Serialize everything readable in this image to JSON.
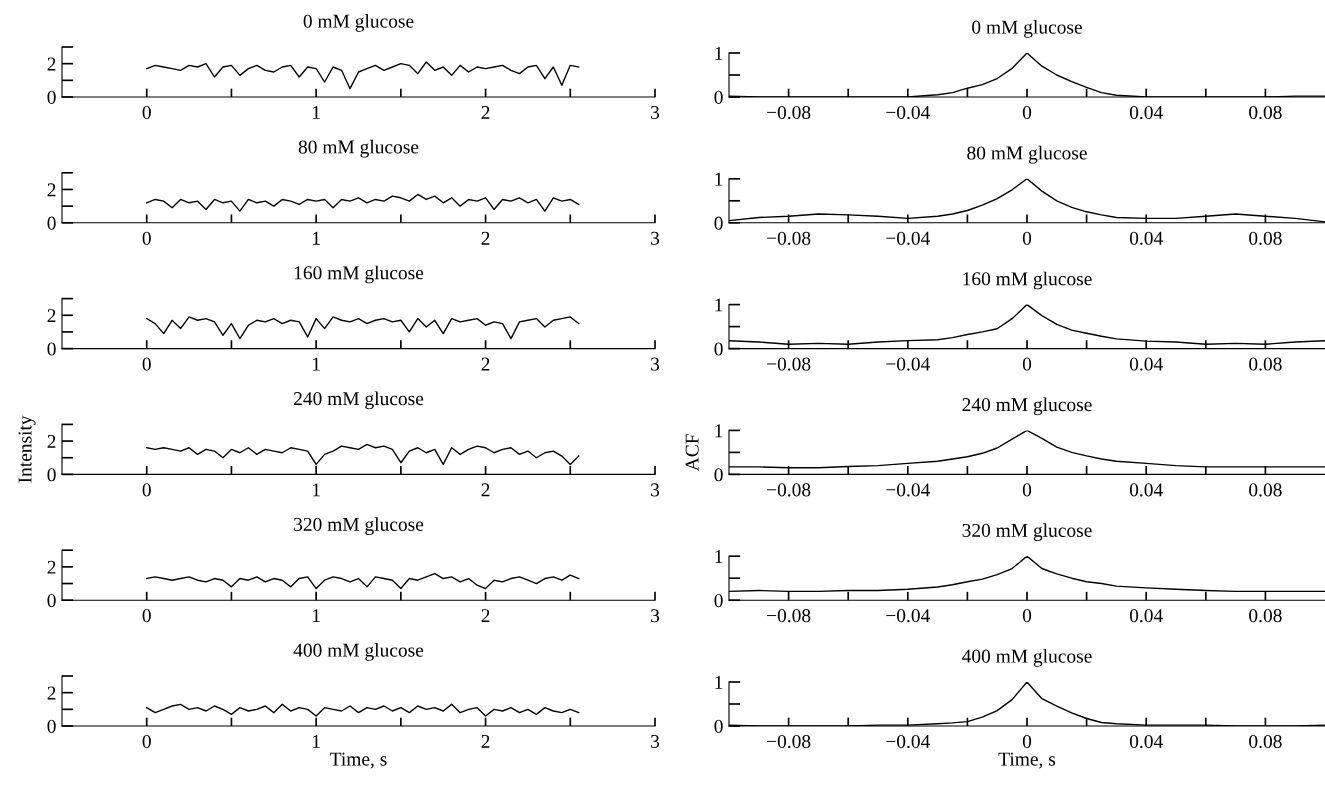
{
  "chart_data": [
    {
      "type": "line",
      "title": "0 mM glucose",
      "color": "#000000",
      "xlim": [
        -0.5,
        3
      ],
      "ylim": [
        0,
        3
      ],
      "xticks": [
        0,
        {
          "value": 0.5,
          "label": null
        },
        1,
        {
          "value": 1.5,
          "label": null
        },
        2,
        {
          "value": 2.5,
          "label": null
        },
        3
      ],
      "yticks": [
        0,
        {
          "value": 1,
          "label": null
        },
        2,
        {
          "value": 3,
          "label": null
        }
      ],
      "x": [
        0,
        0.05,
        0.1,
        0.15,
        0.2,
        0.25,
        0.3,
        0.35,
        0.4,
        0.45,
        0.5,
        0.55,
        0.6,
        0.65,
        0.7,
        0.75,
        0.8,
        0.85,
        0.9,
        0.95,
        1,
        1.05,
        1.1,
        1.15,
        1.2,
        1.25,
        1.3,
        1.35,
        1.4,
        1.45,
        1.5,
        1.55,
        1.6,
        1.65,
        1.7,
        1.75,
        1.8,
        1.85,
        1.9,
        1.95,
        2,
        2.05,
        2.1,
        2.15,
        2.2,
        2.25,
        2.3,
        2.35,
        2.4,
        2.45,
        2.5,
        2.55
      ],
      "values": [
        1.7,
        1.9,
        1.8,
        1.7,
        1.6,
        1.9,
        1.8,
        2.0,
        1.2,
        1.8,
        1.9,
        1.3,
        1.7,
        1.9,
        1.6,
        1.5,
        1.8,
        1.9,
        1.2,
        1.8,
        1.7,
        0.9,
        1.8,
        1.6,
        0.5,
        1.5,
        1.7,
        1.9,
        1.6,
        1.8,
        2.0,
        1.9,
        1.4,
        2.1,
        1.6,
        1.8,
        1.3,
        1.9,
        1.5,
        1.8,
        1.7,
        1.8,
        1.9,
        1.6,
        1.4,
        1.8,
        1.9,
        1.1,
        1.8,
        0.7,
        1.9,
        1.8
      ]
    },
    {
      "type": "line",
      "title": "0 mM glucose",
      "color": "#000000",
      "xlim": [
        -0.1,
        0.1
      ],
      "ylim": [
        0,
        1
      ],
      "xticks": [
        {
          "value": -0.08,
          "label": "−0.08"
        },
        {
          "value": -0.06,
          "label": null
        },
        {
          "value": -0.04,
          "label": "−0.04"
        },
        {
          "value": -0.02,
          "label": null
        },
        0,
        {
          "value": 0.02,
          "label": null
        },
        0.04,
        {
          "value": 0.06,
          "label": null
        },
        0.08
      ],
      "yticks": [
        0,
        {
          "value": 0.5,
          "label": null
        },
        1
      ],
      "x": [
        -0.1,
        -0.09,
        -0.08,
        -0.07,
        -0.06,
        -0.05,
        -0.04,
        -0.03,
        -0.025,
        -0.02,
        -0.015,
        -0.01,
        -0.005,
        0,
        0.005,
        0.01,
        0.015,
        0.02,
        0.025,
        0.03,
        0.04,
        0.05,
        0.06,
        0.07,
        0.08,
        0.09,
        0.1
      ],
      "values": [
        0.02,
        0,
        0,
        0,
        0,
        0,
        0,
        0.05,
        0.1,
        0.2,
        0.28,
        0.42,
        0.65,
        1,
        0.7,
        0.5,
        0.35,
        0.22,
        0.1,
        0.04,
        0,
        0,
        0,
        0,
        0,
        0.02,
        0.02
      ]
    },
    {
      "type": "line",
      "title": "80 mM glucose",
      "color": "#000000",
      "xlim": [
        -0.5,
        3
      ],
      "ylim": [
        0,
        3
      ],
      "xticks": [
        0,
        {
          "value": 0.5,
          "label": null
        },
        1,
        {
          "value": 1.5,
          "label": null
        },
        2,
        {
          "value": 2.5,
          "label": null
        },
        3
      ],
      "yticks": [
        0,
        {
          "value": 1,
          "label": null
        },
        2,
        {
          "value": 3,
          "label": null
        }
      ],
      "x": [
        0,
        0.05,
        0.1,
        0.15,
        0.2,
        0.25,
        0.3,
        0.35,
        0.4,
        0.45,
        0.5,
        0.55,
        0.6,
        0.65,
        0.7,
        0.75,
        0.8,
        0.85,
        0.9,
        0.95,
        1,
        1.05,
        1.1,
        1.15,
        1.2,
        1.25,
        1.3,
        1.35,
        1.4,
        1.45,
        1.5,
        1.55,
        1.6,
        1.65,
        1.7,
        1.75,
        1.8,
        1.85,
        1.9,
        1.95,
        2,
        2.05,
        2.1,
        2.15,
        2.2,
        2.25,
        2.3,
        2.35,
        2.4,
        2.45,
        2.5,
        2.55
      ],
      "values": [
        1.2,
        1.4,
        1.3,
        0.9,
        1.4,
        1.2,
        1.3,
        0.8,
        1.4,
        1.2,
        1.3,
        0.7,
        1.4,
        1.2,
        1.3,
        1.0,
        1.4,
        1.3,
        1.1,
        1.4,
        1.3,
        1.4,
        0.9,
        1.4,
        1.3,
        1.5,
        1.2,
        1.4,
        1.3,
        1.6,
        1.5,
        1.3,
        1.7,
        1.4,
        1.6,
        1.2,
        1.5,
        1.0,
        1.4,
        1.3,
        1.5,
        0.8,
        1.4,
        1.3,
        1.5,
        1.2,
        1.4,
        0.7,
        1.5,
        1.3,
        1.4,
        1.1
      ]
    },
    {
      "type": "line",
      "title": "80 mM glucose",
      "color": "#000000",
      "xlim": [
        -0.1,
        0.1
      ],
      "ylim": [
        0,
        1
      ],
      "xticks": [
        {
          "value": -0.08,
          "label": "−0.08"
        },
        {
          "value": -0.06,
          "label": null
        },
        {
          "value": -0.04,
          "label": "−0.04"
        },
        {
          "value": -0.02,
          "label": null
        },
        0,
        {
          "value": 0.02,
          "label": null
        },
        0.04,
        {
          "value": 0.06,
          "label": null
        },
        0.08
      ],
      "yticks": [
        0,
        {
          "value": 0.5,
          "label": null
        },
        1
      ],
      "x": [
        -0.1,
        -0.09,
        -0.08,
        -0.07,
        -0.06,
        -0.05,
        -0.04,
        -0.03,
        -0.025,
        -0.02,
        -0.015,
        -0.01,
        -0.005,
        0,
        0.005,
        0.01,
        0.015,
        0.02,
        0.025,
        0.03,
        0.04,
        0.05,
        0.06,
        0.07,
        0.08,
        0.09,
        0.1
      ],
      "values": [
        0.05,
        0.12,
        0.15,
        0.2,
        0.18,
        0.15,
        0.1,
        0.15,
        0.2,
        0.28,
        0.4,
        0.55,
        0.75,
        1,
        0.72,
        0.5,
        0.35,
        0.25,
        0.18,
        0.12,
        0.1,
        0.1,
        0.15,
        0.2,
        0.15,
        0.1,
        0.02
      ]
    },
    {
      "type": "line",
      "title": "160 mM glucose",
      "color": "#000000",
      "xlim": [
        -0.5,
        3
      ],
      "ylim": [
        0,
        3
      ],
      "xticks": [
        0,
        {
          "value": 0.5,
          "label": null
        },
        1,
        {
          "value": 1.5,
          "label": null
        },
        2,
        {
          "value": 2.5,
          "label": null
        },
        3
      ],
      "yticks": [
        0,
        {
          "value": 1,
          "label": null
        },
        2,
        {
          "value": 3,
          "label": null
        }
      ],
      "x": [
        0,
        0.05,
        0.1,
        0.15,
        0.2,
        0.25,
        0.3,
        0.35,
        0.4,
        0.45,
        0.5,
        0.55,
        0.6,
        0.65,
        0.7,
        0.75,
        0.8,
        0.85,
        0.9,
        0.95,
        1,
        1.05,
        1.1,
        1.15,
        1.2,
        1.25,
        1.3,
        1.35,
        1.4,
        1.45,
        1.5,
        1.55,
        1.6,
        1.65,
        1.7,
        1.75,
        1.8,
        1.85,
        1.9,
        1.95,
        2,
        2.05,
        2.1,
        2.15,
        2.2,
        2.25,
        2.3,
        2.35,
        2.4,
        2.45,
        2.5,
        2.55
      ],
      "values": [
        1.8,
        1.5,
        0.9,
        1.7,
        1.2,
        1.9,
        1.7,
        1.8,
        1.6,
        0.8,
        1.5,
        0.6,
        1.4,
        1.7,
        1.6,
        1.8,
        1.5,
        1.7,
        1.6,
        0.7,
        1.8,
        1.2,
        1.9,
        1.7,
        1.6,
        1.8,
        1.5,
        1.7,
        1.8,
        1.6,
        1.7,
        1.0,
        1.8,
        1.3,
        1.7,
        0.9,
        1.8,
        1.6,
        1.7,
        1.8,
        1.4,
        1.6,
        1.5,
        0.6,
        1.6,
        1.7,
        1.8,
        1.3,
        1.7,
        1.8,
        1.9,
        1.5
      ]
    },
    {
      "type": "line",
      "title": "160 mM glucose",
      "color": "#000000",
      "xlim": [
        -0.1,
        0.1
      ],
      "ylim": [
        0,
        1
      ],
      "xticks": [
        {
          "value": -0.08,
          "label": "−0.08"
        },
        {
          "value": -0.06,
          "label": null
        },
        {
          "value": -0.04,
          "label": "−0.04"
        },
        {
          "value": -0.02,
          "label": null
        },
        0,
        {
          "value": 0.02,
          "label": null
        },
        0.04,
        {
          "value": 0.06,
          "label": null
        },
        0.08
      ],
      "yticks": [
        0,
        {
          "value": 0.5,
          "label": null
        },
        1
      ],
      "x": [
        -0.1,
        -0.09,
        -0.08,
        -0.07,
        -0.06,
        -0.05,
        -0.04,
        -0.03,
        -0.025,
        -0.02,
        -0.015,
        -0.01,
        -0.005,
        0,
        0.005,
        0.01,
        0.015,
        0.02,
        0.025,
        0.03,
        0.04,
        0.05,
        0.06,
        0.07,
        0.08,
        0.09,
        0.1
      ],
      "values": [
        0.18,
        0.15,
        0.1,
        0.12,
        0.1,
        0.15,
        0.18,
        0.2,
        0.25,
        0.32,
        0.38,
        0.45,
        0.68,
        1,
        0.75,
        0.55,
        0.42,
        0.35,
        0.28,
        0.22,
        0.17,
        0.15,
        0.1,
        0.12,
        0.1,
        0.15,
        0.18
      ]
    },
    {
      "type": "line",
      "title": "240 mM glucose",
      "ylabel": "Intensity",
      "color": "#000000",
      "xlim": [
        -0.5,
        3
      ],
      "ylim": [
        0,
        3
      ],
      "xticks": [
        0,
        {
          "value": 0.5,
          "label": null
        },
        1,
        {
          "value": 1.5,
          "label": null
        },
        2,
        {
          "value": 2.5,
          "label": null
        },
        3
      ],
      "yticks": [
        0,
        {
          "value": 1,
          "label": null
        },
        2,
        {
          "value": 3,
          "label": null
        }
      ],
      "x": [
        0,
        0.05,
        0.1,
        0.15,
        0.2,
        0.25,
        0.3,
        0.35,
        0.4,
        0.45,
        0.5,
        0.55,
        0.6,
        0.65,
        0.7,
        0.75,
        0.8,
        0.85,
        0.9,
        0.95,
        1,
        1.05,
        1.1,
        1.15,
        1.2,
        1.25,
        1.3,
        1.35,
        1.4,
        1.45,
        1.5,
        1.55,
        1.6,
        1.65,
        1.7,
        1.75,
        1.8,
        1.85,
        1.9,
        1.95,
        2,
        2.05,
        2.1,
        2.15,
        2.2,
        2.25,
        2.3,
        2.35,
        2.4,
        2.45,
        2.5,
        2.55
      ],
      "values": [
        1.6,
        1.5,
        1.6,
        1.5,
        1.4,
        1.6,
        1.2,
        1.5,
        1.4,
        1.0,
        1.5,
        1.3,
        1.6,
        1.2,
        1.5,
        1.4,
        1.3,
        1.6,
        1.5,
        1.4,
        0.6,
        1.2,
        1.4,
        1.7,
        1.6,
        1.5,
        1.8,
        1.6,
        1.7,
        1.5,
        0.7,
        1.4,
        1.6,
        1.3,
        1.5,
        0.6,
        1.6,
        1.2,
        1.5,
        1.7,
        1.6,
        1.3,
        1.5,
        1.6,
        1.2,
        1.4,
        1.0,
        1.3,
        1.4,
        1.1,
        0.6,
        1.1
      ]
    },
    {
      "type": "line",
      "title": "240 mM glucose",
      "ylabel": "ACF",
      "color": "#000000",
      "xlim": [
        -0.1,
        0.1
      ],
      "ylim": [
        0,
        1
      ],
      "xticks": [
        {
          "value": -0.08,
          "label": "−0.08"
        },
        {
          "value": -0.06,
          "label": null
        },
        {
          "value": -0.04,
          "label": "−0.04"
        },
        {
          "value": -0.02,
          "label": null
        },
        0,
        {
          "value": 0.02,
          "label": null
        },
        0.04,
        {
          "value": 0.06,
          "label": null
        },
        0.08
      ],
      "yticks": [
        0,
        {
          "value": 0.5,
          "label": null
        },
        1
      ],
      "x": [
        -0.1,
        -0.09,
        -0.08,
        -0.07,
        -0.06,
        -0.05,
        -0.04,
        -0.03,
        -0.025,
        -0.02,
        -0.015,
        -0.01,
        -0.005,
        0,
        0.005,
        0.01,
        0.015,
        0.02,
        0.025,
        0.03,
        0.04,
        0.05,
        0.06,
        0.07,
        0.08,
        0.09,
        0.1
      ],
      "values": [
        0.17,
        0.17,
        0.15,
        0.15,
        0.18,
        0.2,
        0.25,
        0.3,
        0.35,
        0.4,
        0.48,
        0.6,
        0.8,
        1,
        0.82,
        0.62,
        0.5,
        0.42,
        0.35,
        0.3,
        0.25,
        0.2,
        0.17,
        0.17,
        0.17,
        0.17,
        0.17
      ]
    },
    {
      "type": "line",
      "title": "320 mM glucose",
      "color": "#000000",
      "xlim": [
        -0.5,
        3
      ],
      "ylim": [
        0,
        3
      ],
      "xticks": [
        0,
        {
          "value": 0.5,
          "label": null
        },
        1,
        {
          "value": 1.5,
          "label": null
        },
        2,
        {
          "value": 2.5,
          "label": null
        },
        3
      ],
      "yticks": [
        0,
        {
          "value": 1,
          "label": null
        },
        2,
        {
          "value": 3,
          "label": null
        }
      ],
      "x": [
        0,
        0.05,
        0.1,
        0.15,
        0.2,
        0.25,
        0.3,
        0.35,
        0.4,
        0.45,
        0.5,
        0.55,
        0.6,
        0.65,
        0.7,
        0.75,
        0.8,
        0.85,
        0.9,
        0.95,
        1,
        1.05,
        1.1,
        1.15,
        1.2,
        1.25,
        1.3,
        1.35,
        1.4,
        1.45,
        1.5,
        1.55,
        1.6,
        1.65,
        1.7,
        1.75,
        1.8,
        1.85,
        1.9,
        1.95,
        2,
        2.05,
        2.1,
        2.15,
        2.2,
        2.25,
        2.3,
        2.35,
        2.4,
        2.45,
        2.5,
        2.55
      ],
      "values": [
        1.3,
        1.4,
        1.3,
        1.2,
        1.3,
        1.4,
        1.2,
        1.1,
        1.3,
        1.2,
        0.8,
        1.3,
        1.2,
        1.4,
        1.1,
        1.3,
        1.2,
        0.8,
        1.3,
        1.4,
        0.7,
        1.2,
        1.4,
        1.3,
        1.1,
        1.3,
        0.8,
        1.4,
        1.3,
        1.2,
        0.7,
        1.3,
        1.2,
        1.4,
        1.6,
        1.3,
        1.4,
        1.1,
        1.3,
        0.9,
        0.7,
        1.2,
        1.1,
        1.3,
        1.4,
        1.2,
        1.0,
        1.3,
        1.4,
        1.2,
        1.5,
        1.3
      ]
    },
    {
      "type": "line",
      "title": "320 mM glucose",
      "color": "#000000",
      "xlim": [
        -0.1,
        0.1
      ],
      "ylim": [
        0,
        1
      ],
      "xticks": [
        {
          "value": -0.08,
          "label": "−0.08"
        },
        {
          "value": -0.06,
          "label": null
        },
        {
          "value": -0.04,
          "label": "−0.04"
        },
        {
          "value": -0.02,
          "label": null
        },
        0,
        {
          "value": 0.02,
          "label": null
        },
        0.04,
        {
          "value": 0.06,
          "label": null
        },
        0.08
      ],
      "yticks": [
        0,
        {
          "value": 0.5,
          "label": null
        },
        1
      ],
      "x": [
        -0.1,
        -0.09,
        -0.08,
        -0.07,
        -0.06,
        -0.05,
        -0.04,
        -0.03,
        -0.025,
        -0.02,
        -0.015,
        -0.01,
        -0.005,
        0,
        0.005,
        0.01,
        0.015,
        0.02,
        0.025,
        0.03,
        0.04,
        0.05,
        0.06,
        0.07,
        0.08,
        0.09,
        0.1
      ],
      "values": [
        0.2,
        0.22,
        0.2,
        0.2,
        0.22,
        0.22,
        0.25,
        0.3,
        0.35,
        0.42,
        0.48,
        0.58,
        0.72,
        1,
        0.72,
        0.6,
        0.5,
        0.42,
        0.38,
        0.32,
        0.28,
        0.25,
        0.22,
        0.2,
        0.2,
        0.2,
        0.2
      ]
    },
    {
      "type": "line",
      "title": "400 mM glucose",
      "xlabel": "Time, s",
      "color": "#000000",
      "xlim": [
        -0.5,
        3
      ],
      "ylim": [
        0,
        3
      ],
      "xticks": [
        0,
        {
          "value": 0.5,
          "label": null
        },
        1,
        {
          "value": 1.5,
          "label": null
        },
        2,
        {
          "value": 2.5,
          "label": null
        },
        3
      ],
      "yticks": [
        0,
        {
          "value": 1,
          "label": null
        },
        2,
        {
          "value": 3,
          "label": null
        }
      ],
      "x": [
        0,
        0.05,
        0.1,
        0.15,
        0.2,
        0.25,
        0.3,
        0.35,
        0.4,
        0.45,
        0.5,
        0.55,
        0.6,
        0.65,
        0.7,
        0.75,
        0.8,
        0.85,
        0.9,
        0.95,
        1,
        1.05,
        1.1,
        1.15,
        1.2,
        1.25,
        1.3,
        1.35,
        1.4,
        1.45,
        1.5,
        1.55,
        1.6,
        1.65,
        1.7,
        1.75,
        1.8,
        1.85,
        1.9,
        1.95,
        2,
        2.05,
        2.1,
        2.15,
        2.2,
        2.25,
        2.3,
        2.35,
        2.4,
        2.45,
        2.5,
        2.55
      ],
      "values": [
        1.1,
        0.8,
        1.0,
        1.2,
        1.3,
        1.0,
        1.1,
        0.9,
        1.2,
        1.0,
        0.7,
        1.1,
        0.9,
        1.0,
        1.2,
        0.8,
        1.3,
        0.9,
        1.1,
        1.0,
        0.6,
        1.1,
        1.0,
        0.9,
        1.2,
        0.8,
        1.1,
        1.0,
        1.2,
        0.9,
        1.1,
        0.8,
        1.2,
        1.0,
        1.1,
        0.9,
        1.3,
        0.8,
        1.0,
        1.1,
        0.6,
        1.0,
        0.9,
        1.1,
        0.8,
        1.0,
        0.7,
        1.1,
        0.9,
        0.8,
        1.0,
        0.8
      ]
    },
    {
      "type": "line",
      "title": "400 mM glucose",
      "xlabel": "Time, s",
      "color": "#000000",
      "xlim": [
        -0.1,
        0.1
      ],
      "ylim": [
        0,
        1
      ],
      "xticks": [
        {
          "value": -0.08,
          "label": "−0.08"
        },
        {
          "value": -0.06,
          "label": null
        },
        {
          "value": -0.04,
          "label": "−0.04"
        },
        {
          "value": -0.02,
          "label": null
        },
        0,
        {
          "value": 0.02,
          "label": null
        },
        0.04,
        {
          "value": 0.06,
          "label": null
        },
        0.08
      ],
      "yticks": [
        0,
        {
          "value": 0.5,
          "label": null
        },
        1
      ],
      "x": [
        -0.1,
        -0.09,
        -0.08,
        -0.07,
        -0.06,
        -0.05,
        -0.04,
        -0.03,
        -0.025,
        -0.02,
        -0.015,
        -0.01,
        -0.005,
        0,
        0.005,
        0.01,
        0.015,
        0.02,
        0.025,
        0.03,
        0.04,
        0.05,
        0.06,
        0.07,
        0.08,
        0.09,
        0.1
      ],
      "values": [
        0.02,
        0,
        0,
        0,
        0,
        0.02,
        0.02,
        0.05,
        0.07,
        0.1,
        0.2,
        0.35,
        0.6,
        1,
        0.62,
        0.45,
        0.3,
        0.17,
        0.08,
        0.05,
        0.02,
        0.02,
        0.02,
        0,
        0,
        0,
        0.02
      ]
    }
  ]
}
